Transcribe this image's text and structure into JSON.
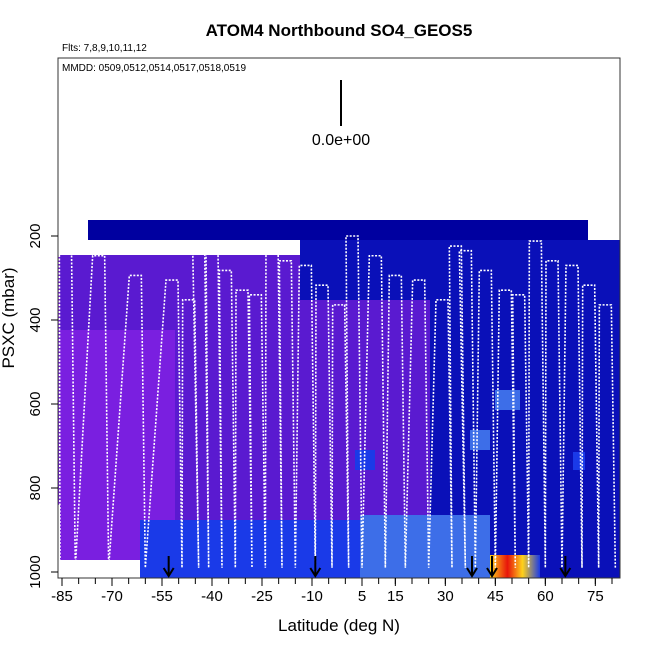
{
  "chart_data": {
    "type": "heatmap",
    "title": "ATOM4 Northbound SO4_GEOS5",
    "flights_label": "Flts: 7,8,9,10,11,12",
    "mmdd_label": "MMDD: 0509,0512,0514,0517,0518,0519",
    "scale_value_label": "0.0e+00",
    "xlabel": "Latitude (deg N)",
    "ylabel": "PSXC (mbar)",
    "xlim": [
      -88,
      85
    ],
    "ylim": [
      1020,
      60
    ],
    "x_ticks": [
      -85,
      -70,
      -55,
      -40,
      -25,
      -10,
      5,
      15,
      30,
      45,
      60,
      75
    ],
    "x_tick_labels": [
      "-85",
      "-70",
      "-55",
      "-40",
      "-25",
      "-10",
      "5",
      "15",
      "30",
      "45",
      "60",
      "75"
    ],
    "y_ticks": [
      200,
      400,
      600,
      800,
      1000
    ],
    "y_tick_labels": [
      "200",
      "400",
      "600",
      "800",
      "1000"
    ],
    "arrow_latitudes": [
      -53,
      -9,
      38,
      44,
      66
    ],
    "colors": {
      "low_purple": "#7a1fe0",
      "mid_purple": "#5a1ad0",
      "dark_blue": "#0a10b8",
      "navy": "#0000a0",
      "bright_blue": "#1a3ae8",
      "light_blue": "#3d6ee8",
      "hot_yellow": "#ffd21a",
      "hot_red": "#e8140a",
      "flight_track": "#ffffff"
    },
    "grid": false,
    "legend": "none"
  }
}
